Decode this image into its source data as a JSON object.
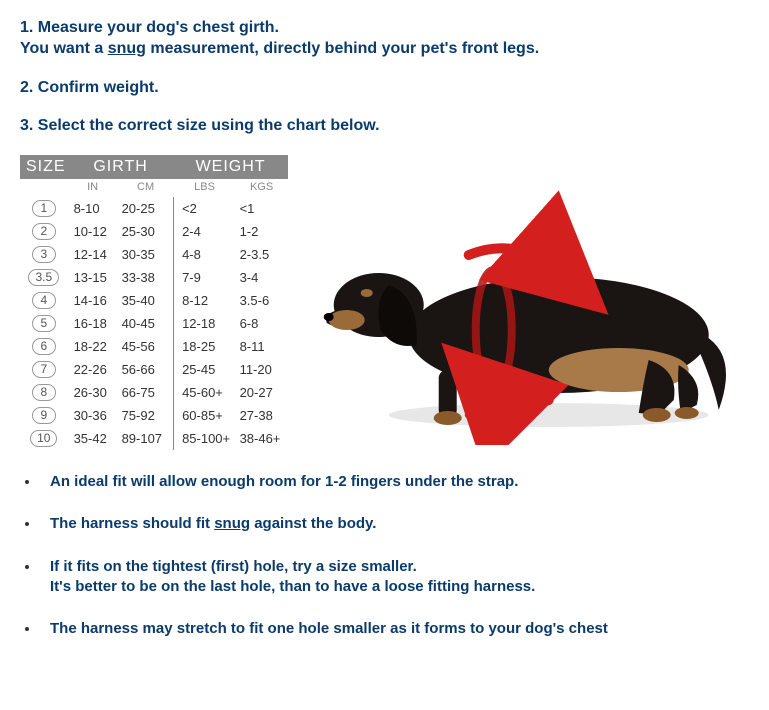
{
  "colors": {
    "heading": "#0a3b6b",
    "table_header_bg": "#888888",
    "table_header_fg": "#ffffff",
    "sub_header_fg": "#888888",
    "body_text": "#333333",
    "arrow": "#d41f1f",
    "dog_body": "#1a1412",
    "dog_tan": "#8a5a2a"
  },
  "steps": [
    {
      "label": "1. Measure your dog's chest girth.",
      "line2_pre": "You want a ",
      "line2_u": "snug",
      "line2_post": " measurement, directly behind your pet's front legs."
    },
    {
      "label": "2. Confirm weight."
    },
    {
      "label": "3. Select the correct size using the chart below."
    }
  ],
  "table": {
    "headers": {
      "size": "SIZE",
      "girth": "GIRTH",
      "weight": "WEIGHT"
    },
    "sub_headers": {
      "in": "IN",
      "cm": "CM",
      "lbs": "LBS",
      "kgs": "KGS"
    },
    "rows": [
      {
        "size": "1",
        "in": "8-10",
        "cm": "20-25",
        "lbs": "<2",
        "kgs": "<1"
      },
      {
        "size": "2",
        "in": "10-12",
        "cm": "25-30",
        "lbs": "2-4",
        "kgs": "1-2"
      },
      {
        "size": "3",
        "in": "12-14",
        "cm": "30-35",
        "lbs": "4-8",
        "kgs": "2-3.5"
      },
      {
        "size": "3.5",
        "in": "13-15",
        "cm": "33-38",
        "lbs": "7-9",
        "kgs": "3-4"
      },
      {
        "size": "4",
        "in": "14-16",
        "cm": "35-40",
        "lbs": "8-12",
        "kgs": "3.5-6"
      },
      {
        "size": "5",
        "in": "16-18",
        "cm": "40-45",
        "lbs": "12-18",
        "kgs": "6-8"
      },
      {
        "size": "6",
        "in": "18-22",
        "cm": "45-56",
        "lbs": "18-25",
        "kgs": "8-11"
      },
      {
        "size": "7",
        "in": "22-26",
        "cm": "56-66",
        "lbs": "25-45",
        "kgs": "11-20"
      },
      {
        "size": "8",
        "in": "26-30",
        "cm": "66-75",
        "lbs": "45-60+",
        "kgs": "20-27"
      },
      {
        "size": "9",
        "in": "30-36",
        "cm": "75-92",
        "lbs": "60-85+",
        "kgs": "27-38"
      },
      {
        "size": "10",
        "in": "35-42",
        "cm": "89-107",
        "lbs": "85-100+",
        "kgs": "38-46+"
      }
    ]
  },
  "tips": [
    {
      "text": "An ideal fit will allow enough room for 1-2 fingers under the strap."
    },
    {
      "pre": "The harness should fit ",
      "u": "snug",
      "post": " against the body."
    },
    {
      "text": "If it fits on the tightest (first) hole, try a size smaller.",
      "text2": "It's better to be on the last hole, than to have a loose fitting harness."
    },
    {
      "text": "The harness may stretch to fit one hole smaller as it forms to your dog's chest"
    }
  ],
  "dog_illustration": {
    "description": "dachshund-side-view-with-girth-arrows",
    "arrow_color": "#d41f1f",
    "band_color": "#aa1515"
  }
}
